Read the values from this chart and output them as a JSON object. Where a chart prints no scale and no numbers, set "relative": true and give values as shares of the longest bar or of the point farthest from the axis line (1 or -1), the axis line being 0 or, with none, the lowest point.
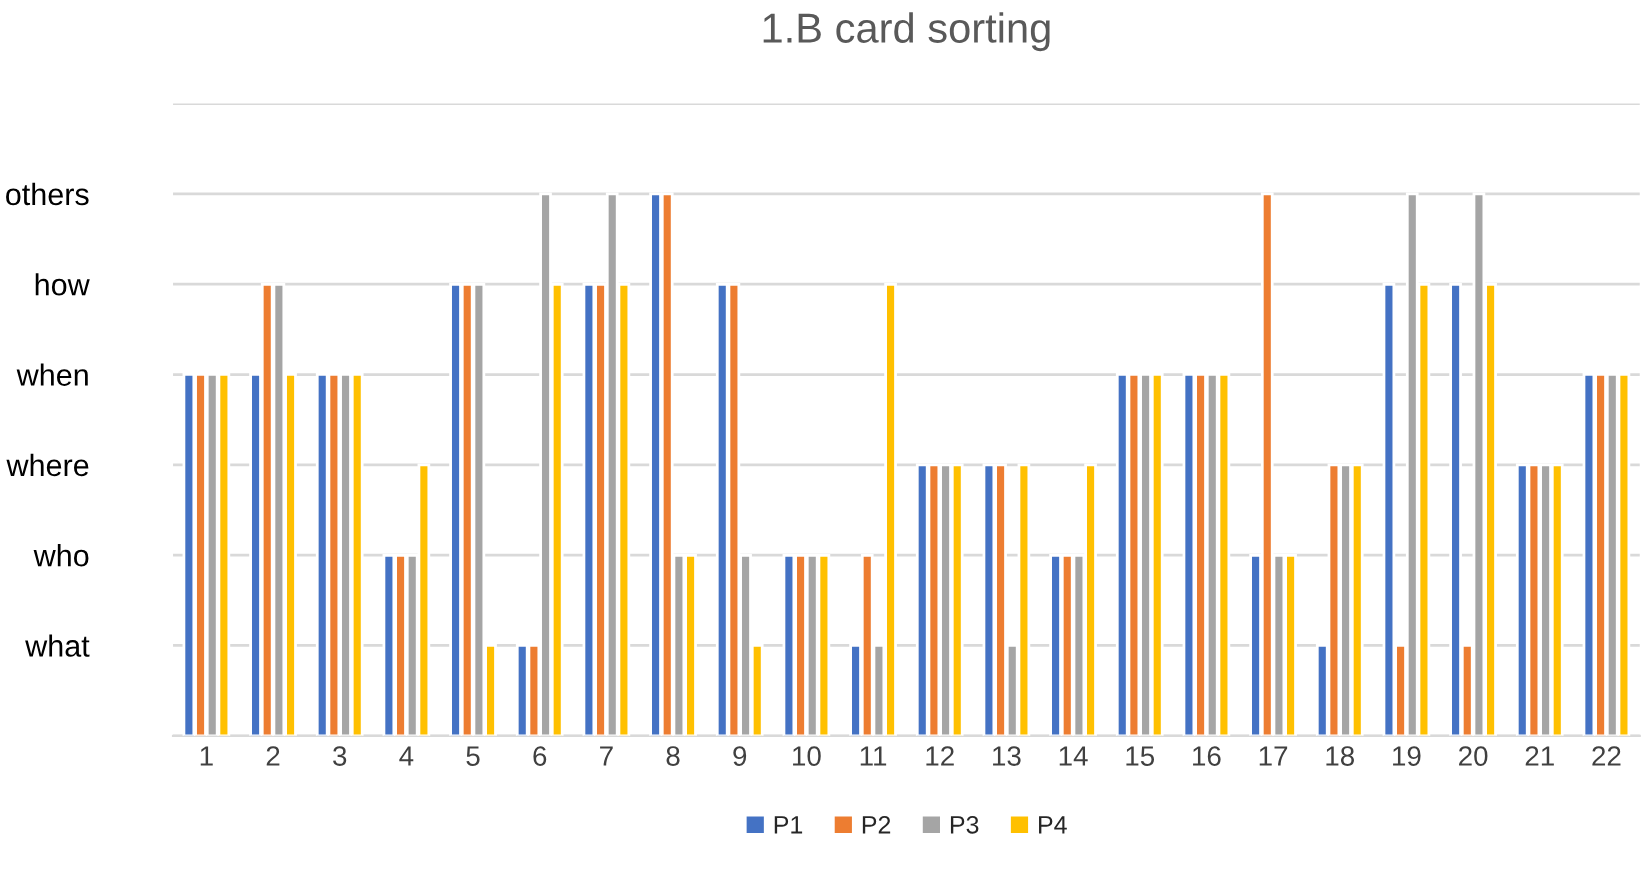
{
  "chart_data": {
    "type": "bar",
    "title": "1.B card sorting",
    "relative": true,
    "categories": [
      "1",
      "2",
      "3",
      "4",
      "5",
      "6",
      "7",
      "8",
      "9",
      "10",
      "11",
      "12",
      "13",
      "14",
      "15",
      "16",
      "17",
      "18",
      "19",
      "20",
      "21",
      "22"
    ],
    "series": [
      {
        "name": "P1",
        "color": "#4472c4",
        "values": [
          0.667,
          0.667,
          0.667,
          0.333,
          0.833,
          0.167,
          0.833,
          1,
          0.833,
          0.333,
          0.167,
          0.5,
          0.5,
          0.333,
          0.667,
          0.667,
          0.333,
          0.167,
          0.833,
          0.833,
          0.5,
          0.667
        ]
      },
      {
        "name": "P2",
        "color": "#ed7d31",
        "values": [
          0.667,
          0.833,
          0.667,
          0.333,
          0.833,
          0.167,
          0.833,
          1,
          0.833,
          0.333,
          0.333,
          0.5,
          0.5,
          0.333,
          0.667,
          0.667,
          1,
          0.5,
          0.167,
          0.167,
          0.5,
          0.667
        ]
      },
      {
        "name": "P3",
        "color": "#a5a5a5",
        "values": [
          0.667,
          0.833,
          0.667,
          0.333,
          0.833,
          1,
          1,
          0.333,
          0.333,
          0.333,
          0.167,
          0.5,
          0.167,
          0.333,
          0.667,
          0.667,
          0.333,
          0.5,
          1,
          1,
          0.5,
          0.667
        ]
      },
      {
        "name": "P4",
        "color": "#ffc000",
        "values": [
          0.667,
          0.667,
          0.667,
          0.5,
          0.167,
          0.833,
          0.833,
          0.333,
          0.167,
          0.333,
          0.833,
          0.5,
          0.5,
          0.5,
          0.667,
          0.667,
          0.333,
          0.5,
          0.833,
          0.833,
          0.5,
          0.667
        ]
      }
    ],
    "annotations": [
      "what",
      "who",
      "where",
      "when",
      "how",
      "others"
    ],
    "grid": "y",
    "legend": "bottom"
  }
}
